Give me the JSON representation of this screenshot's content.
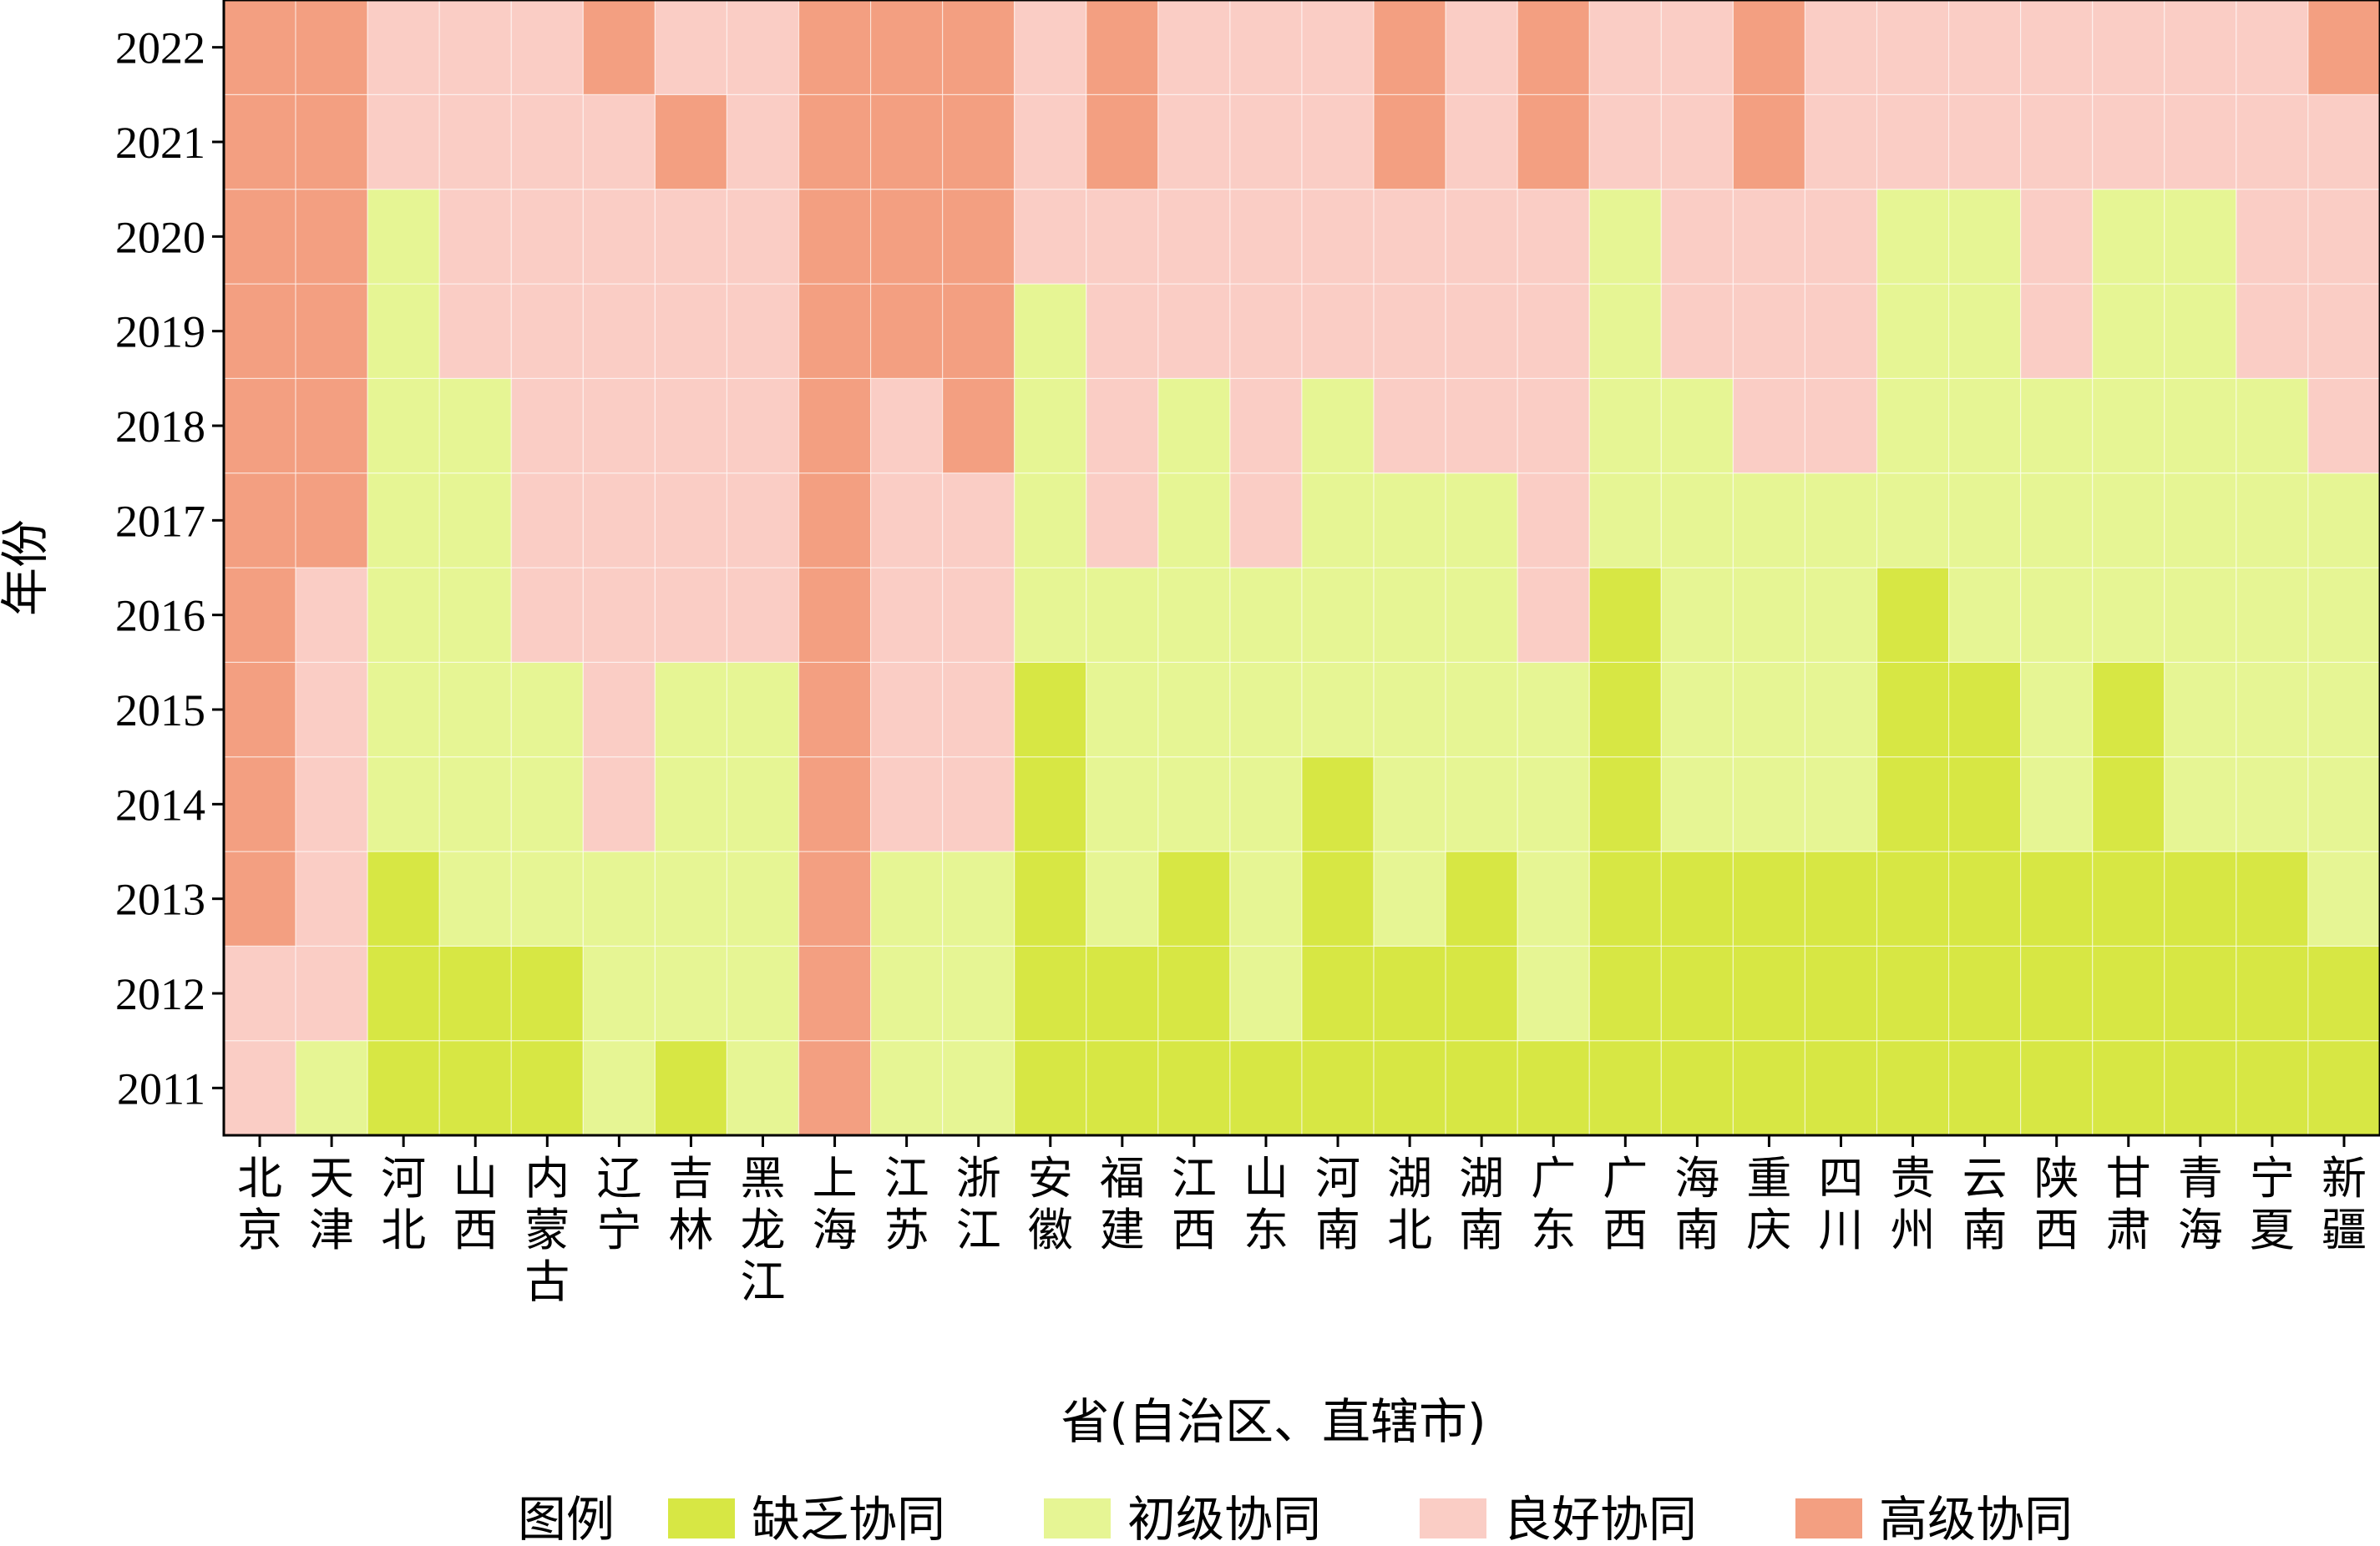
{
  "chart_data": {
    "type": "heatmap",
    "xlabel": "省(自治区、直辖市)",
    "ylabel": "年份",
    "legend_title": "图例",
    "legend_position": "bottom",
    "categories": [
      "北京",
      "天津",
      "河北",
      "山西",
      "内蒙古",
      "辽宁",
      "吉林",
      "黑龙江",
      "上海",
      "江苏",
      "浙江",
      "安徽",
      "福建",
      "江西",
      "山东",
      "河南",
      "湖北",
      "湖南",
      "广东",
      "广西",
      "海南",
      "重庆",
      "四川",
      "贵州",
      "云南",
      "陕西",
      "甘肃",
      "青海",
      "宁夏",
      "新疆"
    ],
    "years": [
      "2011",
      "2012",
      "2013",
      "2014",
      "2015",
      "2016",
      "2017",
      "2018",
      "2019",
      "2020",
      "2021",
      "2022"
    ],
    "levels": [
      {
        "name": "缺乏协同",
        "color": "#d7e744"
      },
      {
        "name": "初级协同",
        "color": "#e6f594"
      },
      {
        "name": "良好协同",
        "color": "#facdc5"
      },
      {
        "name": "高级协同",
        "color": "#f39f81"
      }
    ],
    "matrix": [
      [
        2,
        1,
        0,
        0,
        0,
        1,
        0,
        1,
        3,
        1,
        1,
        0,
        0,
        0,
        0,
        0,
        0,
        0,
        0,
        0,
        0,
        0,
        0,
        0,
        0,
        0,
        0,
        0,
        0,
        0
      ],
      [
        2,
        2,
        0,
        0,
        0,
        1,
        1,
        1,
        3,
        1,
        1,
        0,
        0,
        0,
        1,
        0,
        0,
        0,
        1,
        0,
        0,
        0,
        0,
        0,
        0,
        0,
        0,
        0,
        0,
        0
      ],
      [
        3,
        2,
        0,
        1,
        1,
        1,
        1,
        1,
        3,
        1,
        1,
        0,
        1,
        0,
        1,
        0,
        1,
        0,
        1,
        0,
        0,
        0,
        0,
        0,
        0,
        0,
        0,
        0,
        0,
        1
      ],
      [
        3,
        2,
        1,
        1,
        1,
        2,
        1,
        1,
        3,
        2,
        2,
        0,
        1,
        1,
        1,
        0,
        1,
        1,
        1,
        0,
        1,
        1,
        1,
        0,
        0,
        1,
        0,
        1,
        1,
        1
      ],
      [
        3,
        2,
        1,
        1,
        1,
        2,
        1,
        1,
        3,
        2,
        2,
        0,
        1,
        1,
        1,
        1,
        1,
        1,
        1,
        0,
        1,
        1,
        1,
        0,
        0,
        1,
        0,
        1,
        1,
        1
      ],
      [
        3,
        2,
        1,
        1,
        2,
        2,
        2,
        2,
        3,
        2,
        2,
        1,
        1,
        1,
        1,
        1,
        1,
        1,
        2,
        0,
        1,
        1,
        1,
        0,
        1,
        1,
        1,
        1,
        1,
        1
      ],
      [
        3,
        3,
        1,
        1,
        2,
        2,
        2,
        2,
        3,
        2,
        2,
        1,
        2,
        1,
        2,
        1,
        1,
        1,
        2,
        1,
        1,
        1,
        1,
        1,
        1,
        1,
        1,
        1,
        1,
        1
      ],
      [
        3,
        3,
        1,
        1,
        2,
        2,
        2,
        2,
        3,
        2,
        3,
        1,
        2,
        1,
        2,
        1,
        2,
        2,
        2,
        1,
        1,
        2,
        2,
        1,
        1,
        1,
        1,
        1,
        1,
        2
      ],
      [
        3,
        3,
        1,
        2,
        2,
        2,
        2,
        2,
        3,
        3,
        3,
        1,
        2,
        2,
        2,
        2,
        2,
        2,
        2,
        1,
        2,
        2,
        2,
        1,
        1,
        2,
        1,
        1,
        2,
        2
      ],
      [
        3,
        3,
        1,
        2,
        2,
        2,
        2,
        2,
        3,
        3,
        3,
        2,
        2,
        2,
        2,
        2,
        2,
        2,
        2,
        1,
        2,
        2,
        2,
        1,
        1,
        2,
        1,
        1,
        2,
        2
      ],
      [
        3,
        3,
        2,
        2,
        2,
        2,
        3,
        2,
        3,
        3,
        3,
        2,
        3,
        2,
        2,
        2,
        3,
        2,
        3,
        2,
        2,
        3,
        2,
        2,
        2,
        2,
        2,
        2,
        2,
        2
      ],
      [
        3,
        3,
        2,
        2,
        2,
        3,
        2,
        2,
        3,
        3,
        3,
        2,
        3,
        2,
        2,
        2,
        3,
        2,
        3,
        2,
        2,
        3,
        2,
        2,
        2,
        2,
        2,
        2,
        2,
        3
      ]
    ]
  }
}
